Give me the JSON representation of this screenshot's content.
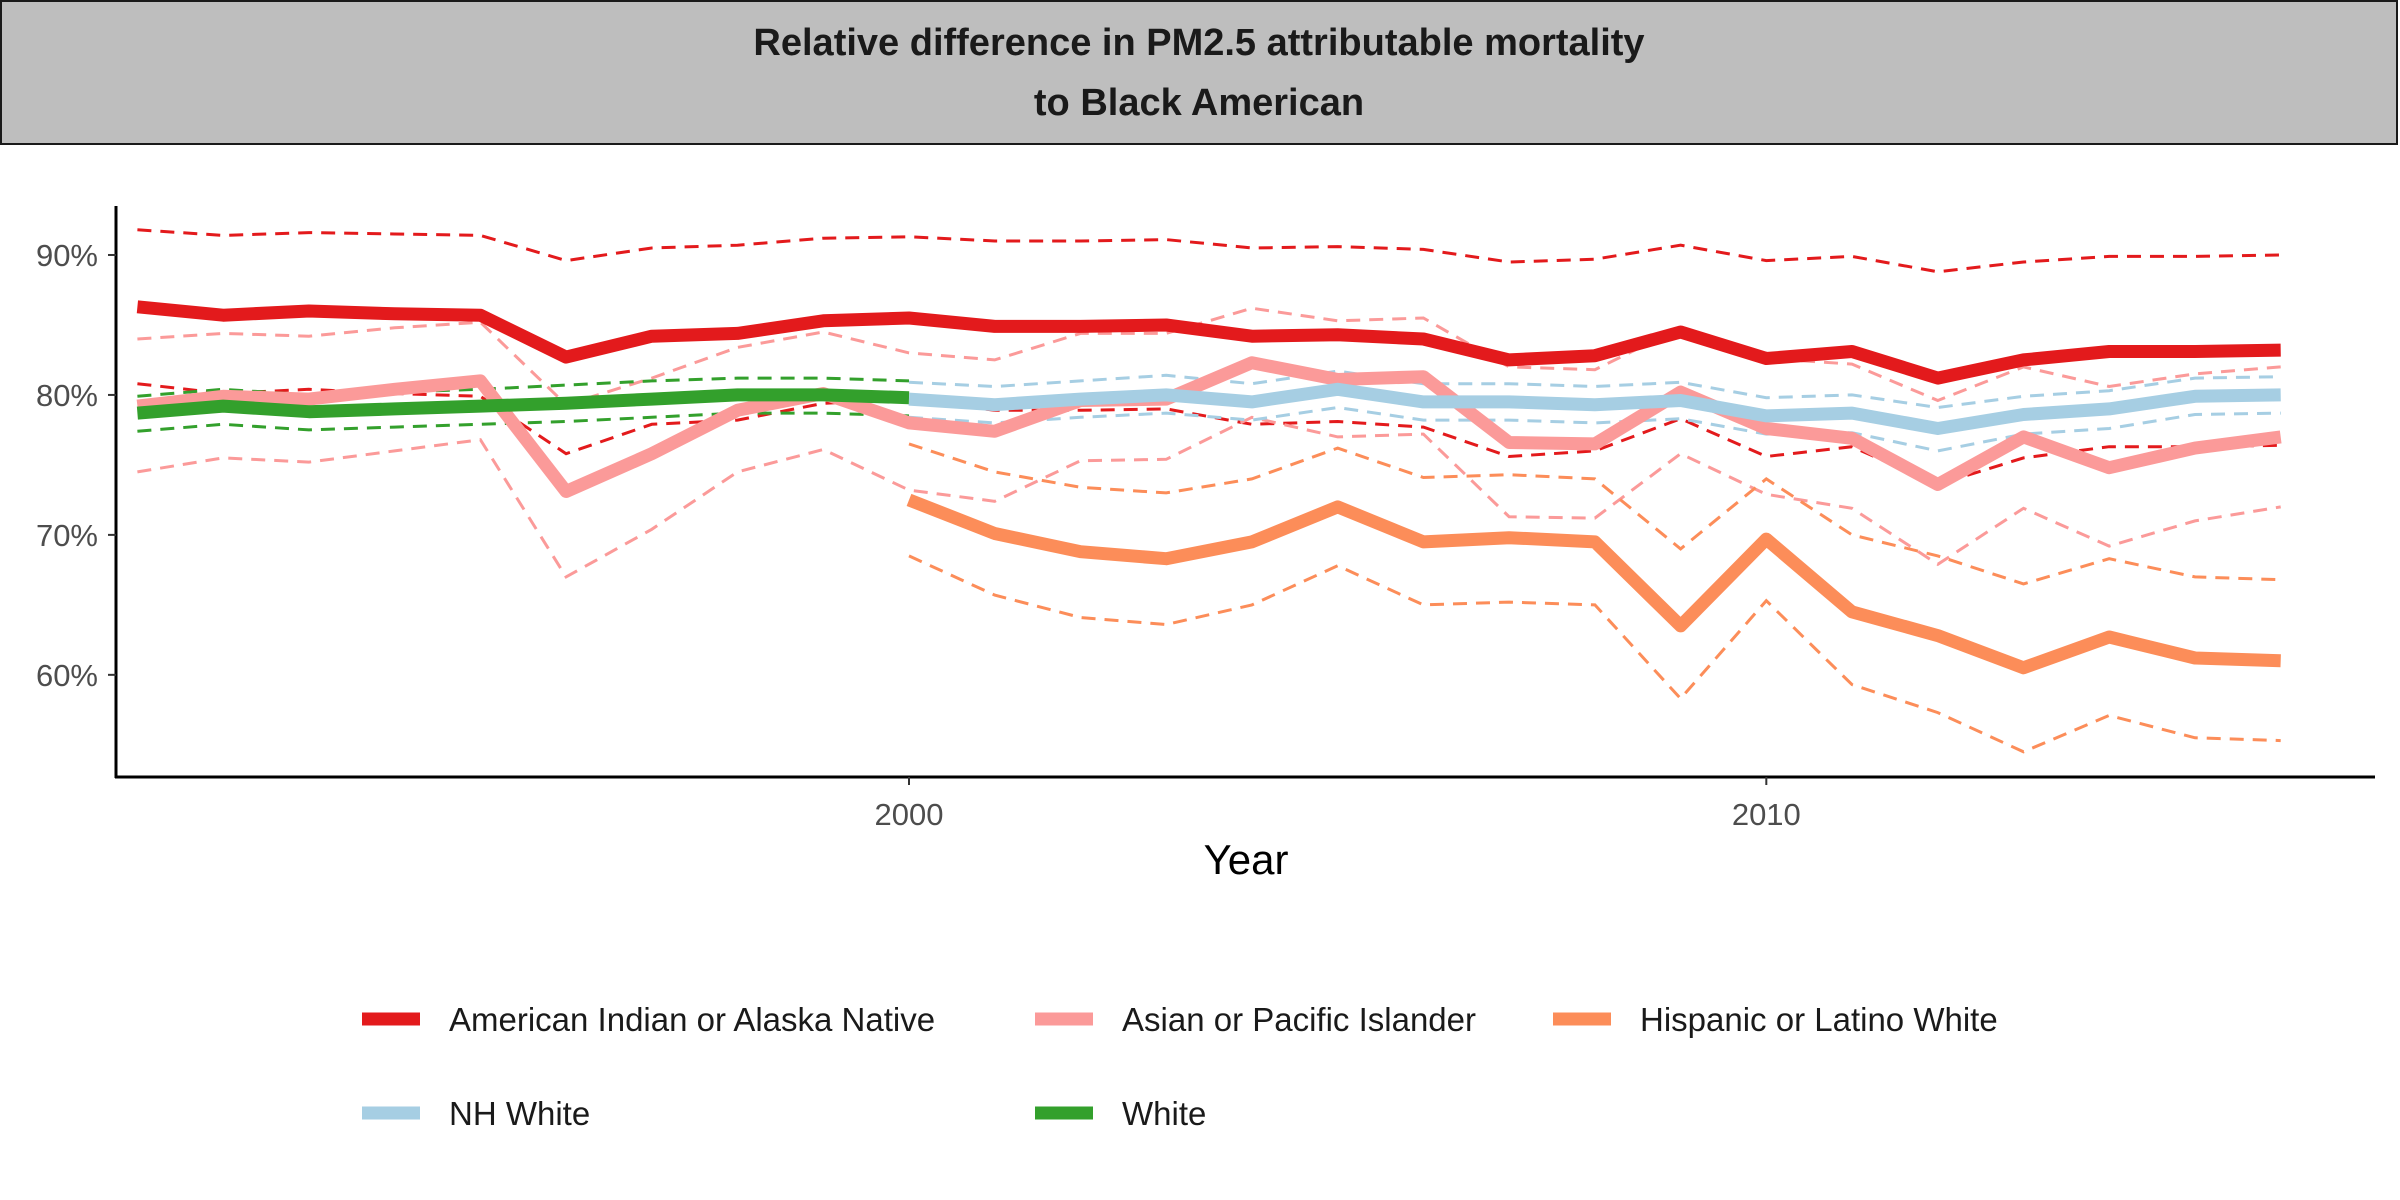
{
  "chart_data": {
    "type": "line",
    "title": "Relative difference in PM2.5 attributable mortality to Black American",
    "xlabel": "Year",
    "ylabel": "",
    "xlim": [
      1990.75,
      2017.1
    ],
    "ylim": [
      0.527,
      0.935
    ],
    "x_ticks": [
      2000,
      2010
    ],
    "x_tick_labels": [
      "2000",
      "2010"
    ],
    "y_ticks": [
      0.6,
      0.7,
      0.8,
      0.9
    ],
    "y_tick_labels": [
      "60%",
      "70%",
      "80%",
      "90%"
    ],
    "grid": false,
    "legend_position": "bottom",
    "line_style_main": "solid",
    "line_style_bounds": "dashed",
    "series": [
      {
        "name": "American Indian or Alaska Native",
        "color": "#e31a1c",
        "x": [
          1991,
          1992,
          1993,
          1994,
          1995,
          1996,
          1997,
          1998,
          1999,
          2000,
          2001,
          2002,
          2003,
          2004,
          2005,
          2006,
          2007,
          2008,
          2009,
          2010,
          2011,
          2012,
          2013,
          2014,
          2015,
          2016
        ],
        "values": [
          0.863,
          0.857,
          0.86,
          0.858,
          0.857,
          0.827,
          0.842,
          0.844,
          0.853,
          0.855,
          0.849,
          0.849,
          0.85,
          0.842,
          0.843,
          0.84,
          0.825,
          0.828,
          0.845,
          0.826,
          0.831,
          0.812,
          0.825,
          0.831,
          0.831,
          0.832
        ],
        "upper": [
          0.918,
          0.914,
          0.916,
          0.915,
          0.914,
          0.896,
          0.905,
          0.907,
          0.912,
          0.913,
          0.91,
          0.91,
          0.911,
          0.905,
          0.906,
          0.904,
          0.895,
          0.897,
          0.907,
          0.896,
          0.899,
          0.888,
          0.895,
          0.899,
          0.899,
          0.9
        ],
        "lower": [
          0.808,
          0.801,
          0.804,
          0.801,
          0.799,
          0.758,
          0.779,
          0.782,
          0.794,
          0.797,
          0.789,
          0.789,
          0.79,
          0.779,
          0.781,
          0.777,
          0.756,
          0.76,
          0.783,
          0.756,
          0.763,
          0.736,
          0.755,
          0.763,
          0.763,
          0.764
        ]
      },
      {
        "name": "Asian or Pacific Islander",
        "color": "#fb9a99",
        "x": [
          1991,
          1992,
          1993,
          1994,
          1995,
          1996,
          1997,
          1998,
          1999,
          2000,
          2001,
          2002,
          2003,
          2004,
          2005,
          2006,
          2007,
          2008,
          2009,
          2010,
          2011,
          2012,
          2013,
          2014,
          2015,
          2016
        ],
        "values": [
          0.792,
          0.799,
          0.797,
          0.804,
          0.81,
          0.731,
          0.758,
          0.789,
          0.801,
          0.78,
          0.774,
          0.796,
          0.797,
          0.823,
          0.811,
          0.813,
          0.766,
          0.765,
          0.802,
          0.776,
          0.769,
          0.736,
          0.77,
          0.748,
          0.762,
          0.77
        ],
        "upper": [
          0.84,
          0.844,
          0.842,
          0.848,
          0.852,
          0.793,
          0.812,
          0.834,
          0.845,
          0.83,
          0.825,
          0.844,
          0.844,
          0.862,
          0.853,
          0.855,
          0.82,
          0.818,
          0.848,
          0.826,
          0.822,
          0.796,
          0.82,
          0.806,
          0.815,
          0.82
        ],
        "lower": [
          0.745,
          0.755,
          0.752,
          0.76,
          0.768,
          0.67,
          0.704,
          0.745,
          0.761,
          0.732,
          0.724,
          0.753,
          0.754,
          0.784,
          0.77,
          0.772,
          0.713,
          0.712,
          0.758,
          0.729,
          0.719,
          0.679,
          0.719,
          0.692,
          0.71,
          0.72
        ]
      },
      {
        "name": "Hispanic or Latino White",
        "color": "#fc8d59",
        "x": [
          2000,
          2001,
          2002,
          2003,
          2004,
          2005,
          2006,
          2007,
          2008,
          2009,
          2010,
          2011,
          2012,
          2013,
          2014,
          2015,
          2016
        ],
        "values": [
          0.725,
          0.701,
          0.688,
          0.683,
          0.695,
          0.72,
          0.695,
          0.698,
          0.695,
          0.635,
          0.697,
          0.645,
          0.628,
          0.605,
          0.627,
          0.612,
          0.61
        ],
        "upper": [
          0.765,
          0.745,
          0.734,
          0.73,
          0.74,
          0.762,
          0.741,
          0.743,
          0.74,
          0.69,
          0.74,
          0.7,
          0.685,
          0.665,
          0.683,
          0.67,
          0.668
        ],
        "lower": [
          0.685,
          0.657,
          0.641,
          0.636,
          0.65,
          0.678,
          0.65,
          0.652,
          0.65,
          0.583,
          0.653,
          0.593,
          0.573,
          0.545,
          0.571,
          0.555,
          0.553
        ]
      },
      {
        "name": "NH White",
        "color": "#a6cee3",
        "x": [
          2000,
          2001,
          2002,
          2003,
          2004,
          2005,
          2006,
          2007,
          2008,
          2009,
          2010,
          2011,
          2012,
          2013,
          2014,
          2015,
          2016
        ],
        "values": [
          0.797,
          0.793,
          0.797,
          0.8,
          0.795,
          0.804,
          0.795,
          0.795,
          0.793,
          0.796,
          0.785,
          0.787,
          0.776,
          0.786,
          0.79,
          0.799,
          0.8
        ],
        "upper": [
          0.809,
          0.806,
          0.81,
          0.814,
          0.808,
          0.817,
          0.808,
          0.808,
          0.806,
          0.809,
          0.798,
          0.8,
          0.791,
          0.799,
          0.803,
          0.812,
          0.813
        ],
        "lower": [
          0.784,
          0.78,
          0.784,
          0.787,
          0.782,
          0.791,
          0.782,
          0.782,
          0.78,
          0.783,
          0.772,
          0.773,
          0.76,
          0.772,
          0.776,
          0.786,
          0.787
        ]
      },
      {
        "name": "White",
        "color": "#33a02c",
        "x": [
          1991,
          1992,
          1993,
          1994,
          1995,
          1996,
          1997,
          1998,
          1999,
          2000
        ],
        "values": [
          0.787,
          0.792,
          0.788,
          0.79,
          0.792,
          0.794,
          0.797,
          0.8,
          0.8,
          0.798
        ],
        "upper": [
          0.799,
          0.804,
          0.8,
          0.802,
          0.804,
          0.807,
          0.81,
          0.812,
          0.812,
          0.81
        ],
        "lower": [
          0.774,
          0.779,
          0.775,
          0.777,
          0.779,
          0.781,
          0.784,
          0.787,
          0.787,
          0.785
        ]
      }
    ]
  }
}
